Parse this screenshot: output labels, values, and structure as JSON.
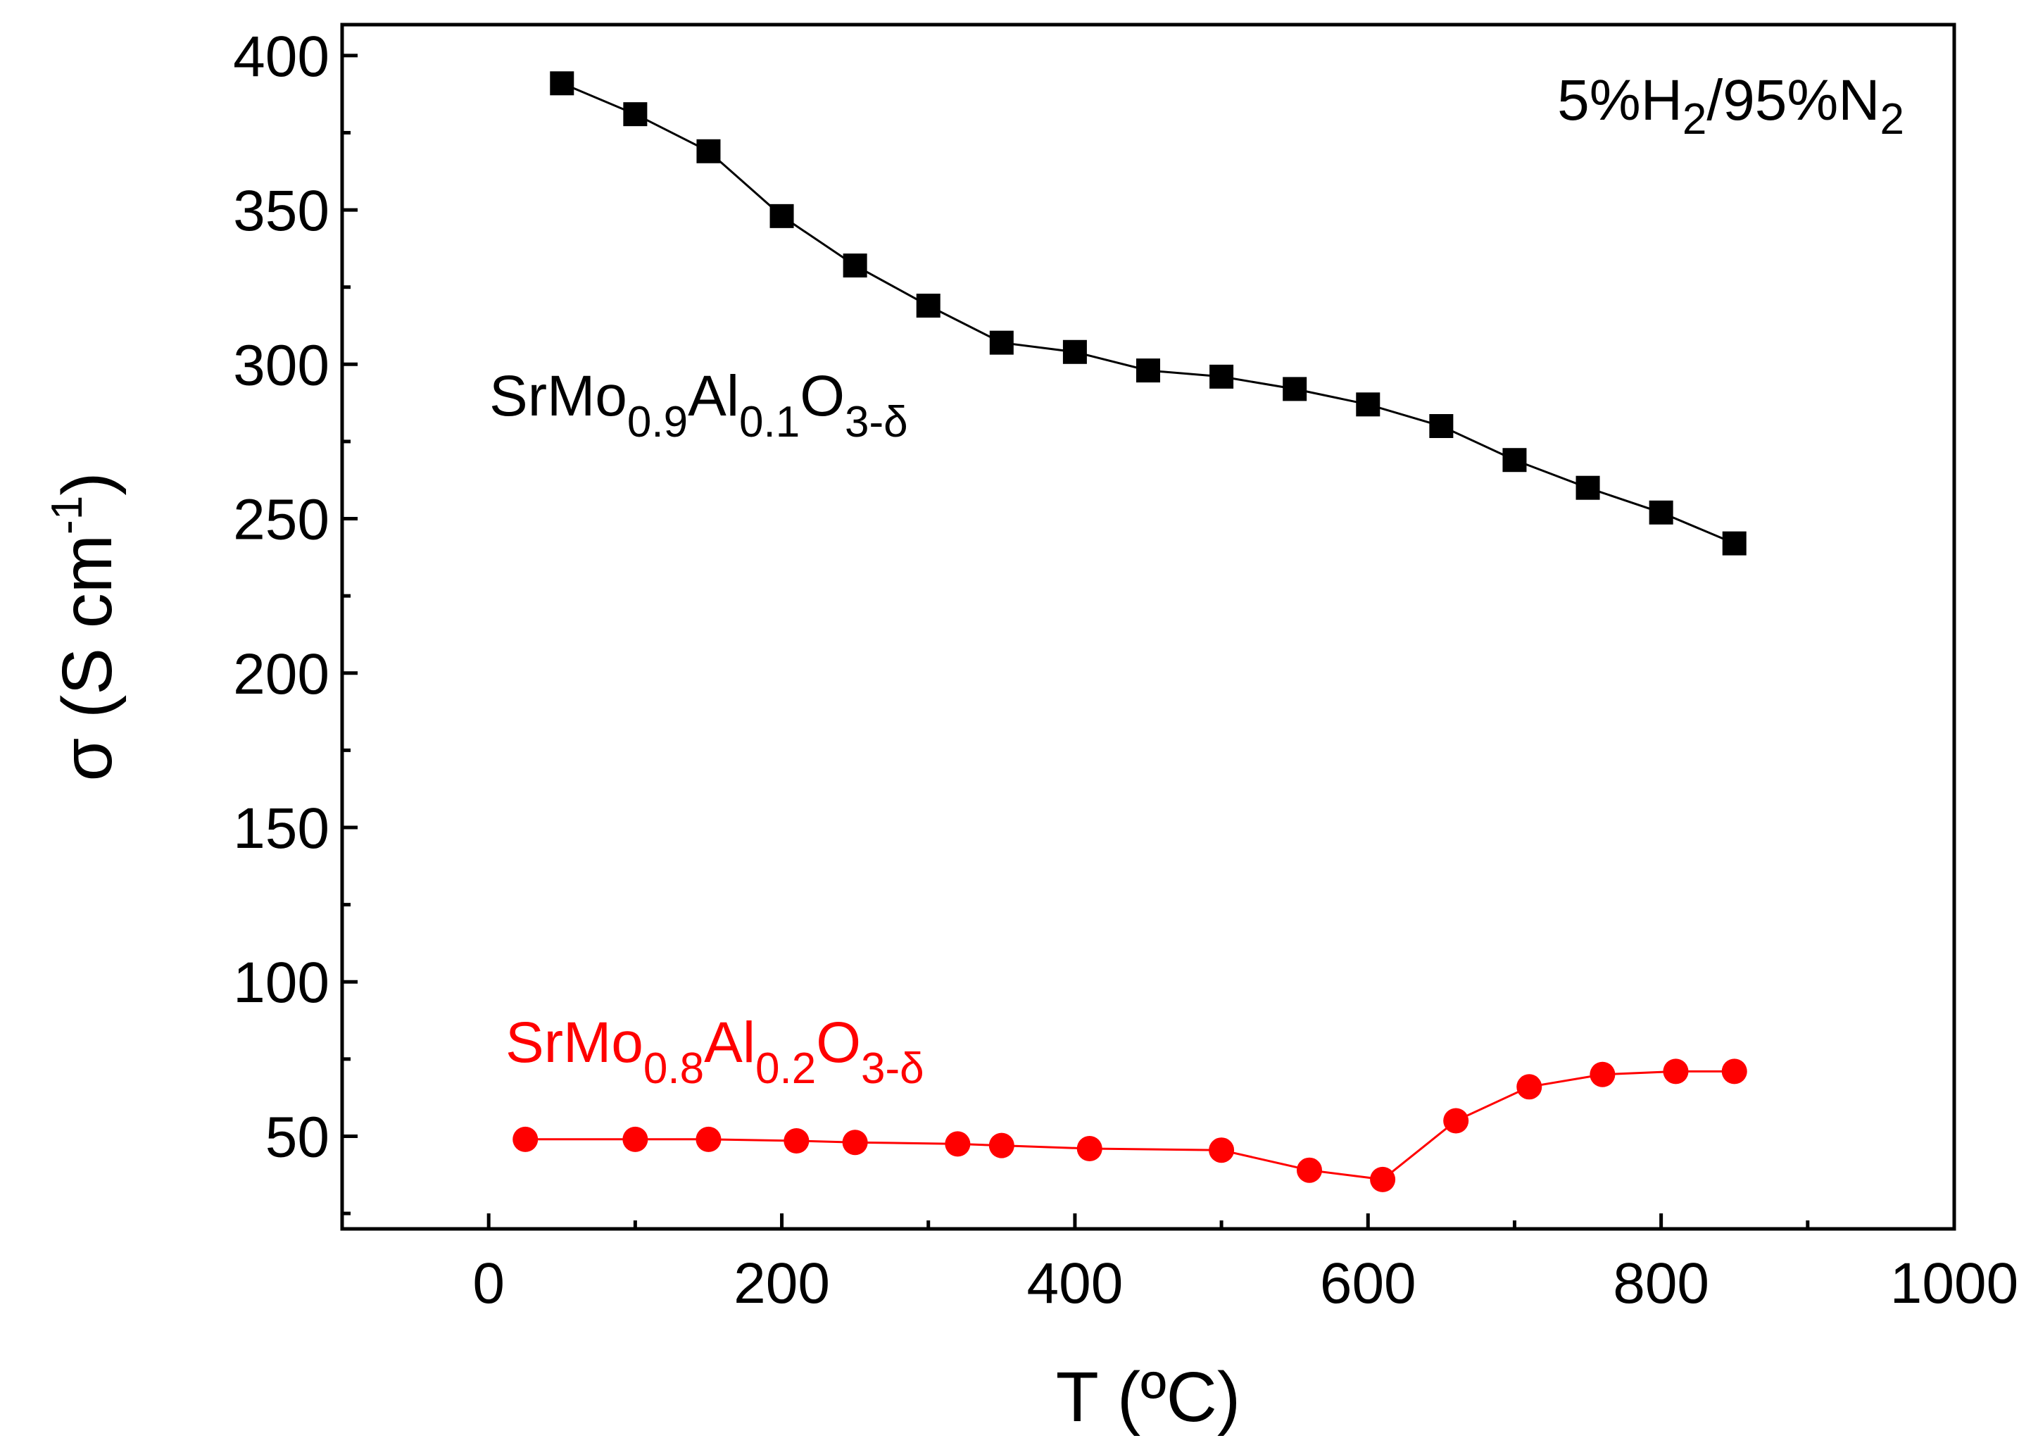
{
  "chart_data": {
    "type": "line",
    "xlabel": "T (ºC)",
    "ylabel_main": "σ (S cm",
    "ylabel_sup": "-1",
    "ylabel_close": ")",
    "xlim": [
      -100,
      1000
    ],
    "ylim": [
      20,
      410
    ],
    "x_ticks": [
      0,
      200,
      400,
      600,
      800,
      1000
    ],
    "x_minor_ticks": [
      -100,
      100,
      300,
      500,
      700,
      900
    ],
    "y_ticks": [
      50,
      100,
      150,
      200,
      250,
      300,
      350,
      400
    ],
    "y_minor_ticks": [
      25,
      75,
      125,
      175,
      225,
      275,
      325,
      375
    ],
    "atmosphere": {
      "p1": "5%H",
      "s1": "2",
      "p2": "/95%N",
      "s2": "2"
    },
    "series": [
      {
        "name": "SrMo0.9Al0.1O3-δ",
        "label": {
          "p1": "SrMo",
          "s1": "0.9",
          "p2": "Al",
          "s2": "0.1",
          "p3": "O",
          "s3": "3-δ"
        },
        "color": "#000000",
        "marker": "square",
        "x": [
          50,
          100,
          150,
          200,
          250,
          300,
          350,
          400,
          450,
          500,
          550,
          600,
          650,
          700,
          750,
          800,
          850
        ],
        "y": [
          391,
          381,
          369,
          348,
          332,
          319,
          307,
          304,
          298,
          296,
          292,
          287,
          280,
          269,
          260,
          252,
          242
        ]
      },
      {
        "name": "SrMo0.8Al0.2O3-δ",
        "label": {
          "p1": "SrMo",
          "s1": "0.8",
          "p2": "Al",
          "s2": "0.2",
          "p3": "O",
          "s3": "3-δ"
        },
        "color": "#ff0000",
        "marker": "circle",
        "x": [
          25,
          100,
          150,
          210,
          250,
          320,
          350,
          410,
          500,
          560,
          610,
          660,
          710,
          760,
          810,
          850
        ],
        "y": [
          49,
          49,
          49,
          48.5,
          48,
          47.5,
          47,
          46,
          45.5,
          39,
          36,
          55,
          66,
          70,
          71,
          71
        ]
      }
    ]
  }
}
